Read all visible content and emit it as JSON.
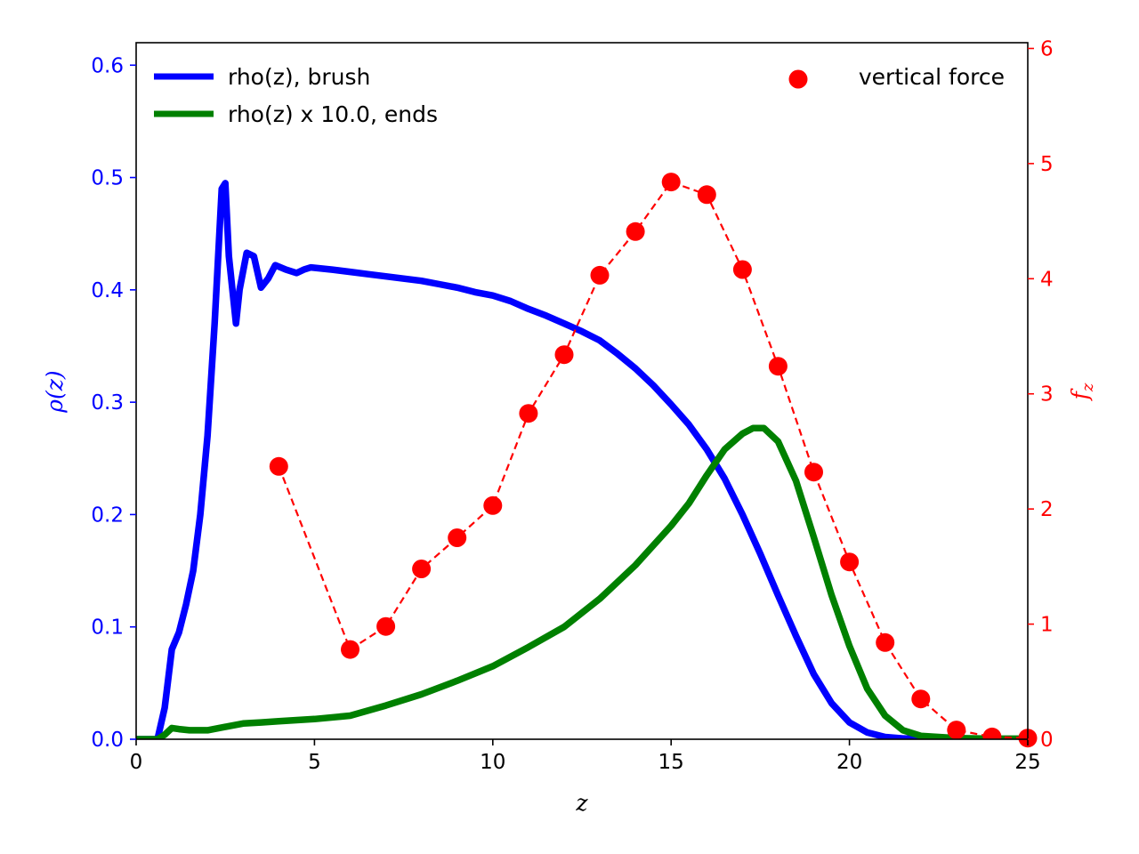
{
  "chart_data": {
    "type": "line",
    "x_axis": {
      "label": "z",
      "range": [
        0,
        25
      ],
      "ticks": [
        0,
        5,
        10,
        15,
        20,
        25
      ]
    },
    "y_axis_left": {
      "label": "ρ(z)",
      "color": "#0000ff",
      "range": [
        0,
        0.62
      ],
      "ticks": [
        0.0,
        0.1,
        0.2,
        0.3,
        0.4,
        0.5,
        0.6
      ]
    },
    "y_axis_right": {
      "label": "f_z",
      "color": "#ff0000",
      "range": [
        0,
        6.05
      ],
      "ticks": [
        0,
        1,
        2,
        3,
        4,
        5,
        6
      ]
    },
    "grid": false,
    "legend_left": {
      "placement": "top-left"
    },
    "legend_right": {
      "placement": "top-right"
    },
    "series": [
      {
        "name": "rho(z), brush",
        "axis": "left",
        "style": "solid-thick",
        "color": "#0000ff",
        "x": [
          0,
          0.6,
          0.8,
          1.0,
          1.2,
          1.4,
          1.6,
          1.8,
          2.0,
          2.2,
          2.4,
          2.5,
          2.6,
          2.8,
          2.9,
          3.1,
          3.3,
          3.5,
          3.7,
          3.9,
          4.2,
          4.5,
          4.7,
          4.9,
          5.5,
          6.0,
          6.5,
          7.0,
          7.5,
          8.0,
          8.5,
          9.0,
          9.5,
          10.0,
          10.5,
          11.0,
          11.5,
          12.0,
          12.5,
          13.0,
          13.5,
          14.0,
          14.5,
          15.0,
          15.5,
          16.0,
          16.5,
          17.0,
          17.5,
          18.0,
          18.5,
          19.0,
          19.5,
          20.0,
          20.5,
          21.0,
          21.5,
          22.0,
          22.5,
          23.0,
          25.0
        ],
        "y": [
          0.0,
          0.0,
          0.028,
          0.08,
          0.095,
          0.12,
          0.15,
          0.2,
          0.27,
          0.37,
          0.49,
          0.495,
          0.43,
          0.37,
          0.4,
          0.433,
          0.43,
          0.402,
          0.41,
          0.422,
          0.418,
          0.415,
          0.418,
          0.42,
          0.418,
          0.416,
          0.414,
          0.412,
          0.41,
          0.408,
          0.405,
          0.402,
          0.398,
          0.395,
          0.39,
          0.383,
          0.377,
          0.37,
          0.363,
          0.355,
          0.343,
          0.33,
          0.315,
          0.298,
          0.28,
          0.258,
          0.232,
          0.2,
          0.165,
          0.128,
          0.092,
          0.058,
          0.032,
          0.015,
          0.006,
          0.002,
          0.0007,
          0.0002,
          0.0,
          0.0,
          0.0
        ]
      },
      {
        "name": "rho(z) x 10.0, ends",
        "axis": "left",
        "style": "solid-thick",
        "color": "#008000",
        "x": [
          0,
          0.6,
          0.8,
          1.0,
          1.2,
          1.5,
          2.0,
          2.5,
          3.0,
          3.5,
          4.0,
          5.0,
          6.0,
          7.0,
          8.0,
          9.0,
          10.0,
          11.0,
          12.0,
          13.0,
          14.0,
          15.0,
          15.5,
          16.0,
          16.5,
          17.0,
          17.3,
          17.6,
          18.0,
          18.5,
          19.0,
          19.5,
          20.0,
          20.5,
          21.0,
          21.5,
          22.0,
          23.0,
          24.0,
          25.0
        ],
        "y": [
          0.0,
          0.0,
          0.004,
          0.01,
          0.009,
          0.008,
          0.008,
          0.011,
          0.014,
          0.015,
          0.016,
          0.018,
          0.021,
          0.03,
          0.04,
          0.052,
          0.065,
          0.082,
          0.1,
          0.125,
          0.155,
          0.19,
          0.21,
          0.235,
          0.258,
          0.272,
          0.277,
          0.277,
          0.265,
          0.23,
          0.18,
          0.128,
          0.083,
          0.045,
          0.021,
          0.008,
          0.003,
          0.001,
          0.0005,
          0.0005
        ]
      },
      {
        "name": "vertical force",
        "axis": "right",
        "style": "dashed-markers",
        "color": "#ff0000",
        "x": [
          4,
          6,
          7,
          8,
          9,
          10,
          11,
          12,
          13,
          14,
          15,
          16,
          17,
          18,
          19,
          20,
          21,
          22,
          23,
          24,
          25
        ],
        "y": [
          2.37,
          0.78,
          0.98,
          1.48,
          1.75,
          2.03,
          2.83,
          3.34,
          4.03,
          4.41,
          4.84,
          4.73,
          4.08,
          3.24,
          2.32,
          1.54,
          0.84,
          0.35,
          0.08,
          0.02,
          0.01
        ]
      }
    ]
  }
}
